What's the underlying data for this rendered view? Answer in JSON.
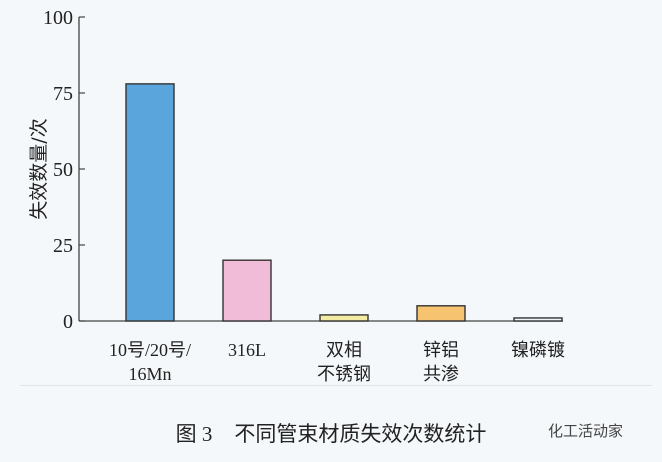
{
  "chart_data": {
    "type": "bar",
    "categories": [
      [
        "10号/20号/",
        "16Mn"
      ],
      [
        "316L"
      ],
      [
        "双相",
        "不锈钢"
      ],
      [
        "锌铝",
        "共渗"
      ],
      [
        "镍磷镀"
      ]
    ],
    "values": [
      78,
      20,
      2,
      5,
      1
    ],
    "colors": [
      "#5aa5dc",
      "#f1bcd7",
      "#f3eaa3",
      "#f6c470",
      "#eef3f6"
    ],
    "ylabel": "失效数量/次",
    "xlabel": "",
    "ylim": [
      0,
      100
    ],
    "yticks": [
      0,
      25,
      50,
      75,
      100
    ],
    "grid": false
  },
  "caption": {
    "number": "图 3",
    "text": "不同管束材质失效次数统计"
  },
  "brand": "化工活动家"
}
